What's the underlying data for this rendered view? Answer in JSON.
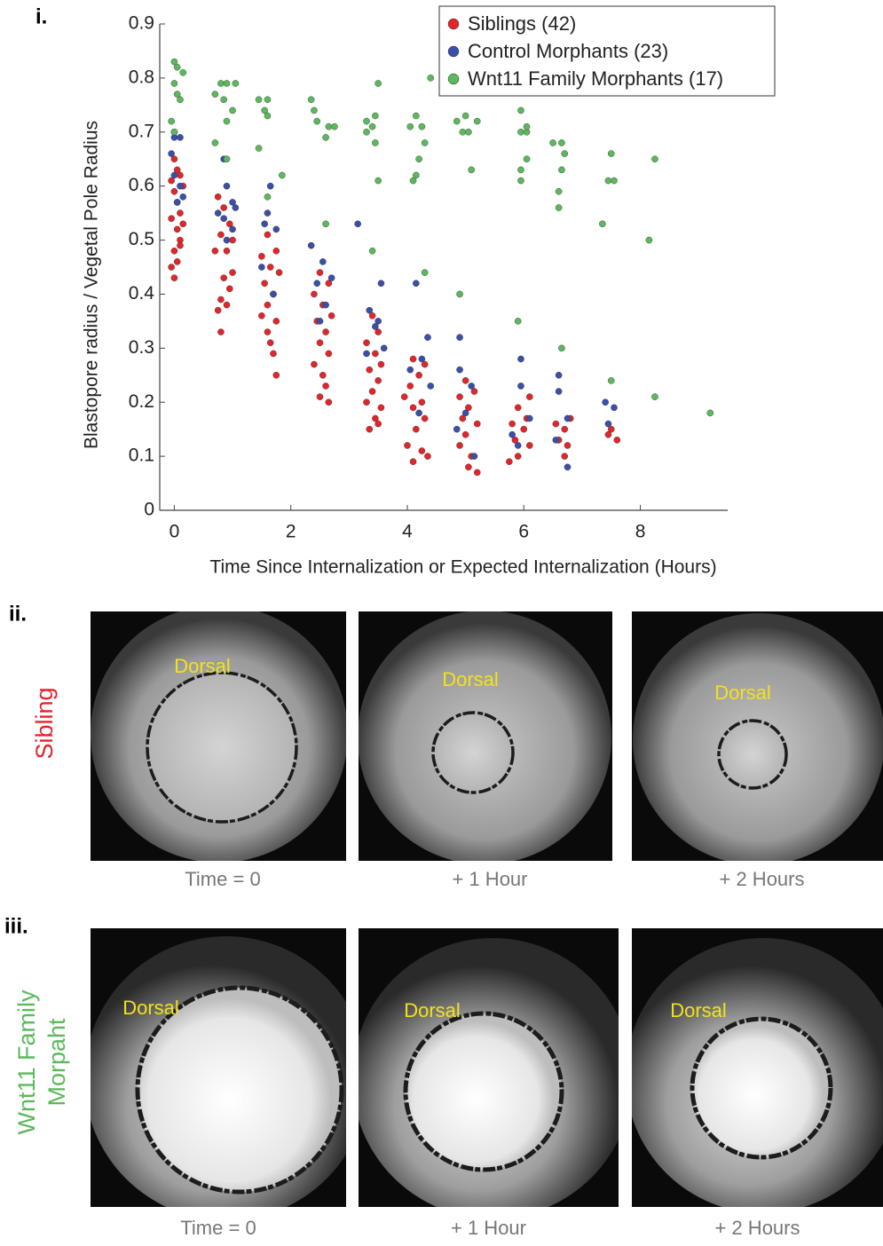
{
  "panel_labels": [
    "i.",
    "ii.",
    "iii."
  ],
  "chart_data": {
    "type": "scatter",
    "xlabel": "Time Since Internalization or Expected Internalization (Hours)",
    "ylabel": "Blastopore radius / Vegetal Pole Radius",
    "xlim": [
      -0.25,
      9.5
    ],
    "ylim": [
      0,
      0.9
    ],
    "xticks": [
      0,
      2,
      4,
      6,
      8
    ],
    "yticks": [
      0,
      0.1,
      0.2,
      0.3,
      0.4,
      0.5,
      0.6,
      0.7,
      0.8,
      0.9
    ],
    "legend": "upper right",
    "grid": false,
    "series": [
      {
        "name": "Siblings (42)",
        "color": "#e0262b",
        "x": [
          0.0,
          0.05,
          -0.05,
          0.1,
          0.15,
          0.0,
          0.05,
          0.1,
          -0.05,
          0.05,
          0.1,
          0.0,
          0.05,
          -0.05,
          0.0,
          0.1,
          0.15,
          0.75,
          0.85,
          0.95,
          0.8,
          1.0,
          0.9,
          0.7,
          1.0,
          0.85,
          0.95,
          0.8,
          0.75,
          0.9,
          0.8,
          1.6,
          1.75,
          1.5,
          1.65,
          1.8,
          1.55,
          1.7,
          1.6,
          1.5,
          1.75,
          1.6,
          1.65,
          1.7,
          1.75,
          2.5,
          2.65,
          2.4,
          2.55,
          2.7,
          2.45,
          2.6,
          2.5,
          2.65,
          2.4,
          2.55,
          2.6,
          2.5,
          2.65,
          3.4,
          3.5,
          3.3,
          3.45,
          3.55,
          3.35,
          3.5,
          3.4,
          3.3,
          3.55,
          3.45,
          3.35,
          3.5,
          4.1,
          4.3,
          4.2,
          4.05,
          3.95,
          4.25,
          4.1,
          4.3,
          4.15,
          4.0,
          4.25,
          4.1,
          4.35,
          5.0,
          5.15,
          4.9,
          5.05,
          4.95,
          5.2,
          5.0,
          4.9,
          5.1,
          5.2,
          5.05,
          6.1,
          5.9,
          6.05,
          5.8,
          6.0,
          5.85,
          6.1,
          5.75,
          5.9,
          6.55,
          6.8,
          6.7,
          6.6,
          6.75,
          6.7,
          7.45,
          7.6,
          7.5
        ],
        "values": [
          0.65,
          0.63,
          0.61,
          0.62,
          0.6,
          0.59,
          0.57,
          0.55,
          0.54,
          0.52,
          0.5,
          0.48,
          0.46,
          0.45,
          0.43,
          0.49,
          0.53,
          0.58,
          0.56,
          0.53,
          0.51,
          0.5,
          0.48,
          0.48,
          0.44,
          0.43,
          0.41,
          0.39,
          0.37,
          0.38,
          0.33,
          0.51,
          0.48,
          0.47,
          0.45,
          0.44,
          0.42,
          0.4,
          0.38,
          0.36,
          0.35,
          0.33,
          0.31,
          0.29,
          0.25,
          0.44,
          0.42,
          0.4,
          0.38,
          0.36,
          0.35,
          0.33,
          0.31,
          0.29,
          0.27,
          0.25,
          0.23,
          0.21,
          0.2,
          0.36,
          0.33,
          0.31,
          0.29,
          0.27,
          0.26,
          0.24,
          0.22,
          0.2,
          0.19,
          0.17,
          0.15,
          0.16,
          0.28,
          0.27,
          0.25,
          0.23,
          0.21,
          0.2,
          0.19,
          0.17,
          0.15,
          0.12,
          0.11,
          0.09,
          0.1,
          0.24,
          0.22,
          0.21,
          0.19,
          0.17,
          0.16,
          0.14,
          0.12,
          0.1,
          0.07,
          0.08,
          0.21,
          0.19,
          0.17,
          0.16,
          0.15,
          0.13,
          0.12,
          0.09,
          0.1,
          0.16,
          0.17,
          0.15,
          0.13,
          0.12,
          0.1,
          0.14,
          0.13,
          0.15
        ]
      },
      {
        "name": "Control Morphants (23)",
        "color": "#3a4fa8",
        "x": [
          0.0,
          0.0,
          0.1,
          -0.05,
          0.0,
          0.1,
          0.15,
          0.05,
          0.85,
          0.9,
          1.0,
          0.75,
          0.85,
          1.0,
          0.9,
          1.05,
          1.65,
          1.6,
          1.55,
          1.75,
          1.5,
          1.7,
          2.35,
          2.55,
          2.45,
          2.6,
          2.5,
          3.15,
          2.7,
          3.35,
          3.5,
          3.45,
          3.55,
          3.3,
          3.6,
          4.15,
          4.35,
          4.25,
          4.05,
          4.4,
          4.2,
          4.9,
          4.9,
          5.1,
          5.0,
          4.85,
          5.15,
          5.95,
          5.95,
          6.1,
          5.8,
          5.9,
          6.6,
          6.6,
          6.75,
          6.55,
          6.75,
          7.4,
          7.55,
          7.45
        ],
        "values": [
          0.7,
          0.69,
          0.69,
          0.66,
          0.62,
          0.6,
          0.58,
          0.57,
          0.65,
          0.6,
          0.57,
          0.55,
          0.54,
          0.52,
          0.5,
          0.56,
          0.6,
          0.55,
          0.53,
          0.52,
          0.45,
          0.4,
          0.49,
          0.46,
          0.42,
          0.38,
          0.35,
          0.53,
          0.43,
          0.37,
          0.35,
          0.34,
          0.42,
          0.29,
          0.3,
          0.42,
          0.32,
          0.28,
          0.26,
          0.23,
          0.18,
          0.32,
          0.26,
          0.23,
          0.18,
          0.15,
          0.1,
          0.28,
          0.23,
          0.17,
          0.14,
          0.12,
          0.25,
          0.22,
          0.17,
          0.13,
          0.08,
          0.2,
          0.19,
          0.16
        ]
      },
      {
        "name": "Wnt11 Family Morphants (17)",
        "color": "#5cb85c",
        "x": [
          0.0,
          0.05,
          0.15,
          0.0,
          0.05,
          0.1,
          -0.05,
          0.0,
          0.7,
          0.8,
          0.9,
          1.05,
          0.85,
          1.0,
          0.9,
          0.7,
          0.9,
          1.45,
          1.6,
          1.55,
          1.6,
          1.45,
          1.85,
          1.6,
          2.35,
          2.4,
          2.45,
          2.65,
          2.75,
          2.6,
          2.6,
          3.3,
          3.45,
          3.5,
          3.4,
          3.3,
          3.45,
          3.5,
          3.4,
          4.15,
          4.05,
          4.25,
          4.4,
          4.3,
          4.2,
          4.15,
          4.1,
          4.3,
          4.85,
          5.0,
          5.2,
          4.95,
          5.05,
          5.1,
          4.9,
          5.95,
          5.95,
          6.05,
          6.05,
          6.05,
          5.95,
          5.95,
          5.9,
          6.5,
          6.65,
          6.7,
          6.65,
          6.6,
          6.6,
          6.65,
          7.5,
          7.45,
          7.55,
          7.35,
          7.5,
          8.15,
          8.25,
          8.25,
          9.2
        ],
        "values": [
          0.83,
          0.82,
          0.81,
          0.79,
          0.77,
          0.76,
          0.72,
          0.7,
          0.77,
          0.79,
          0.79,
          0.79,
          0.76,
          0.74,
          0.72,
          0.68,
          0.65,
          0.76,
          0.76,
          0.74,
          0.73,
          0.67,
          0.62,
          0.58,
          0.76,
          0.74,
          0.72,
          0.71,
          0.71,
          0.69,
          0.53,
          0.72,
          0.73,
          0.79,
          0.71,
          0.7,
          0.68,
          0.61,
          0.48,
          0.73,
          0.71,
          0.71,
          0.8,
          0.68,
          0.65,
          0.62,
          0.61,
          0.44,
          0.72,
          0.73,
          0.72,
          0.7,
          0.7,
          0.63,
          0.4,
          0.74,
          0.7,
          0.7,
          0.71,
          0.65,
          0.63,
          0.61,
          0.35,
          0.68,
          0.68,
          0.66,
          0.63,
          0.59,
          0.56,
          0.3,
          0.66,
          0.61,
          0.61,
          0.53,
          0.24,
          0.5,
          0.65,
          0.21,
          0.18
        ]
      }
    ]
  },
  "image_rows": [
    {
      "label": [
        "Sibling"
      ],
      "color": "#e0262b",
      "images": [
        {
          "annotation": "Dorsal",
          "caption": "Time = 0"
        },
        {
          "annotation": "Dorsal",
          "caption": "+ 1 Hour"
        },
        {
          "annotation": "Dorsal",
          "caption": "+ 2 Hours"
        }
      ]
    },
    {
      "label": [
        "Wnt11 Family",
        "Morpaht"
      ],
      "color": "#5cb85c",
      "images": [
        {
          "annotation": "Dorsal",
          "caption": "Time = 0"
        },
        {
          "annotation": "Dorsal",
          "caption": "+ 1 Hour"
        },
        {
          "annotation": "Dorsal",
          "caption": "+ 2 Hours"
        }
      ]
    }
  ]
}
